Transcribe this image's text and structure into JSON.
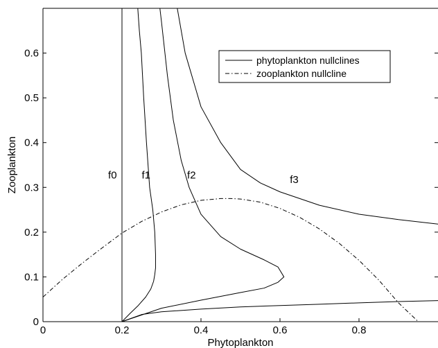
{
  "chart_data": {
    "type": "line",
    "title": "",
    "xlabel": "Phytoplankton",
    "ylabel": "Zooplankton",
    "xlim": [
      0,
      1.0
    ],
    "ylim": [
      0,
      0.7
    ],
    "grid": false,
    "legend_position": "top-right",
    "x_ticks": [
      0,
      0.2,
      0.4,
      0.6,
      0.8
    ],
    "x_tick_labels": [
      "0",
      "0.2",
      "0.4",
      "0.6",
      "0.8"
    ],
    "y_ticks": [
      0,
      0.1,
      0.2,
      0.3,
      0.4,
      0.5,
      0.6
    ],
    "y_tick_labels": [
      "0",
      "0.1",
      "0.2",
      "0.3",
      "0.4",
      "0.5",
      "0.6"
    ],
    "legend": [
      {
        "label": "phytoplankton nullclines",
        "style": "solid"
      },
      {
        "label": "zooplankton nullcline",
        "style": "dashdot"
      }
    ],
    "series": [
      {
        "name": "f0",
        "group": "phytoplankton nullclines",
        "style": "solid",
        "x": [
          0.2,
          0.2
        ],
        "y": [
          0.0,
          0.7
        ]
      },
      {
        "name": "f1",
        "group": "phytoplankton nullclines",
        "style": "solid",
        "x": [
          0.2,
          0.22,
          0.24,
          0.26,
          0.273,
          0.28,
          0.283,
          0.285,
          0.285,
          0.283,
          0.278,
          0.27,
          0.262,
          0.255,
          0.249,
          0.244,
          0.24
        ],
        "y": [
          0.0,
          0.018,
          0.035,
          0.055,
          0.073,
          0.09,
          0.105,
          0.12,
          0.15,
          0.2,
          0.25,
          0.3,
          0.4,
          0.5,
          0.6,
          0.65,
          0.7
        ]
      },
      {
        "name": "f2",
        "group": "phytoplankton nullclines",
        "style": "solid",
        "x": [
          0.2,
          0.3,
          0.4,
          0.5,
          0.56,
          0.595,
          0.61,
          0.595,
          0.56,
          0.5,
          0.45,
          0.4,
          0.37,
          0.35,
          0.33,
          0.315,
          0.305,
          0.3,
          0.296
        ],
        "y": [
          0.0,
          0.03,
          0.048,
          0.065,
          0.075,
          0.088,
          0.1,
          0.122,
          0.138,
          0.162,
          0.19,
          0.24,
          0.3,
          0.36,
          0.45,
          0.55,
          0.63,
          0.67,
          0.7
        ]
      },
      {
        "name": "",
        "group": "phytoplankton nullclines",
        "style": "solid",
        "x": [
          0.2,
          0.25,
          0.3,
          0.4,
          0.5,
          0.6,
          0.7,
          0.8,
          0.9,
          1.0
        ],
        "y": [
          0.0,
          0.016,
          0.022,
          0.028,
          0.033,
          0.036,
          0.039,
          0.042,
          0.045,
          0.047
        ]
      },
      {
        "name": "f3",
        "group": "phytoplankton nullclines",
        "style": "solid",
        "x": [
          0.34,
          0.36,
          0.4,
          0.45,
          0.5,
          0.55,
          0.6,
          0.7,
          0.8,
          0.9,
          1.0
        ],
        "y": [
          0.7,
          0.6,
          0.48,
          0.4,
          0.34,
          0.31,
          0.29,
          0.26,
          0.24,
          0.228,
          0.218
        ]
      },
      {
        "name": "zooplankton nullcline",
        "group": "zooplankton nullcline",
        "style": "dashdot",
        "x": [
          0.0,
          0.05,
          0.1,
          0.15,
          0.2,
          0.25,
          0.3,
          0.35,
          0.4,
          0.45,
          0.475,
          0.5,
          0.55,
          0.6,
          0.65,
          0.7,
          0.75,
          0.8,
          0.85,
          0.9,
          0.95,
          0.98
        ],
        "y": [
          0.055,
          0.095,
          0.131,
          0.165,
          0.198,
          0.224,
          0.245,
          0.261,
          0.271,
          0.275,
          0.275,
          0.274,
          0.267,
          0.253,
          0.233,
          0.207,
          0.175,
          0.137,
          0.093,
          0.042,
          0.0,
          -0.02
        ]
      }
    ],
    "annotations": [
      {
        "text": "f0",
        "x": 0.165,
        "y": 0.32
      },
      {
        "text": "f1",
        "x": 0.25,
        "y": 0.32
      },
      {
        "text": "f2",
        "x": 0.365,
        "y": 0.32
      },
      {
        "text": "f3",
        "x": 0.625,
        "y": 0.31
      }
    ]
  }
}
